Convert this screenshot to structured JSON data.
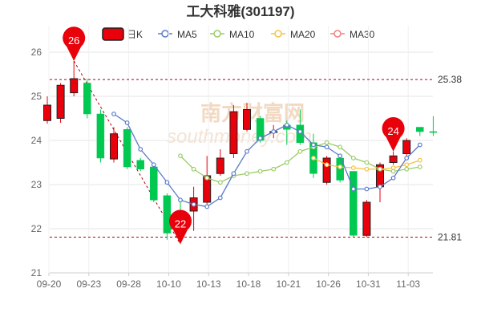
{
  "chart_data": {
    "type": "candlestick",
    "title": "工大科雅(301197)",
    "watermark": {
      "primary": "南方财富网",
      "secondary": "southmoney.com"
    },
    "legend": [
      {
        "name": "日K",
        "color": "#e8000b",
        "kind": "box"
      },
      {
        "name": "MA5",
        "color": "#5b7bc8",
        "kind": "line"
      },
      {
        "name": "MA10",
        "color": "#99cc66",
        "kind": "line"
      },
      {
        "name": "MA20",
        "color": "#f5c242",
        "kind": "line"
      },
      {
        "name": "MA30",
        "color": "#f08080",
        "kind": "line"
      }
    ],
    "y_ticks": [
      "26",
      "25",
      "24",
      "23",
      "22",
      "21"
    ],
    "y_range": [
      21,
      26.6
    ],
    "x_ticks": [
      {
        "label": "09-20",
        "index": 0
      },
      {
        "label": "09-23",
        "index": 3
      },
      {
        "label": "09-28",
        "index": 6
      },
      {
        "label": "10-10",
        "index": 9
      },
      {
        "label": "10-13",
        "index": 12
      },
      {
        "label": "10-18",
        "index": 15
      },
      {
        "label": "10-21",
        "index": 18
      },
      {
        "label": "10-26",
        "index": 21
      },
      {
        "label": "10-31",
        "index": 24
      },
      {
        "label": "11-03",
        "index": 27
      }
    ],
    "up_color": "#e8000b",
    "down_color": "#00c850",
    "candles": [
      {
        "o": 24.45,
        "c": 24.8,
        "h": 25.0,
        "l": 24.38
      },
      {
        "o": 24.5,
        "c": 25.25,
        "h": 25.3,
        "l": 24.4
      },
      {
        "o": 25.08,
        "c": 25.4,
        "h": 25.8,
        "l": 25.0
      },
      {
        "o": 25.3,
        "c": 24.6,
        "h": 25.4,
        "l": 24.5
      },
      {
        "o": 24.6,
        "c": 23.6,
        "h": 24.7,
        "l": 23.5
      },
      {
        "o": 23.58,
        "c": 24.15,
        "h": 24.3,
        "l": 23.5
      },
      {
        "o": 24.25,
        "c": 23.4,
        "h": 24.3,
        "l": 23.35
      },
      {
        "o": 23.55,
        "c": 23.35,
        "h": 23.6,
        "l": 23.3
      },
      {
        "o": 23.4,
        "c": 22.65,
        "h": 23.45,
        "l": 22.6
      },
      {
        "o": 22.75,
        "c": 21.9,
        "h": 22.8,
        "l": 21.75
      },
      {
        "o": 22.3,
        "c": 22.15,
        "h": 22.7,
        "l": 21.65
      },
      {
        "o": 22.4,
        "c": 22.7,
        "h": 22.95,
        "l": 21.95
      },
      {
        "o": 22.6,
        "c": 23.2,
        "h": 23.65,
        "l": 22.55
      },
      {
        "o": 23.25,
        "c": 23.6,
        "h": 23.8,
        "l": 23.2
      },
      {
        "o": 23.7,
        "c": 24.65,
        "h": 24.8,
        "l": 23.6
      },
      {
        "o": 24.25,
        "c": 24.7,
        "h": 24.85,
        "l": 24.2
      },
      {
        "o": 24.5,
        "c": 24.0,
        "h": 24.55,
        "l": 23.95
      },
      {
        "o": 24.2,
        "c": 24.2,
        "h": 24.35,
        "l": 24.05
      },
      {
        "o": 24.35,
        "c": 24.25,
        "h": 24.45,
        "l": 23.9
      },
      {
        "o": 24.35,
        "c": 23.95,
        "h": 24.7,
        "l": 23.9
      },
      {
        "o": 23.95,
        "c": 23.25,
        "h": 24.15,
        "l": 23.15
      },
      {
        "o": 23.05,
        "c": 23.6,
        "h": 23.65,
        "l": 23.0
      },
      {
        "o": 23.6,
        "c": 23.1,
        "h": 23.65,
        "l": 23.05
      },
      {
        "o": 23.3,
        "c": 21.85,
        "h": 23.3,
        "l": 21.81
      },
      {
        "o": 21.85,
        "c": 22.6,
        "h": 22.65,
        "l": 21.81
      },
      {
        "o": 22.95,
        "c": 23.45,
        "h": 23.5,
        "l": 22.6
      },
      {
        "o": 23.5,
        "c": 23.65,
        "h": 23.75,
        "l": 23.45
      },
      {
        "o": 23.7,
        "c": 24.0,
        "h": 24.05,
        "l": 23.65
      },
      {
        "o": 24.3,
        "c": 24.2,
        "h": 24.3,
        "l": 24.1
      },
      {
        "o": 24.2,
        "c": 24.18,
        "h": 24.55,
        "l": 24.1
      }
    ],
    "ma5": [
      null,
      null,
      null,
      null,
      24.6,
      24.4,
      23.8,
      23.45,
      23.05,
      22.65,
      22.55,
      22.5,
      22.7,
      23.25,
      23.75,
      24.05,
      24.2,
      24.35,
      24.2,
      23.9,
      23.85,
      23.65,
      22.9,
      22.9,
      22.95,
      23.15,
      23.6,
      23.9
    ],
    "ma10": [
      null,
      null,
      null,
      null,
      null,
      23.65,
      23.35,
      23.15,
      23.05,
      23.2,
      23.25,
      23.3,
      23.35,
      23.5,
      23.75,
      23.85,
      23.95,
      23.85,
      23.6,
      23.5,
      23.35,
      23.3,
      23.35,
      23.4
    ],
    "ma20": [
      null,
      null,
      null,
      null,
      null,
      null,
      null,
      null,
      null,
      null,
      null,
      null,
      null,
      23.6,
      23.45,
      23.4,
      23.38,
      23.35,
      23.35,
      23.38,
      23.45,
      23.55
    ],
    "ma30": [],
    "ma5_start": 5,
    "ma10_start": 10,
    "ma20_start": 20,
    "ref_lines": [
      {
        "label": "25.38",
        "value": 25.38
      },
      {
        "label": "21.81",
        "value": 21.81
      }
    ],
    "pins": [
      {
        "label": "26",
        "index": 2,
        "value": 25.8
      },
      {
        "label": "22",
        "index": 10,
        "value": 21.65
      },
      {
        "label": "24",
        "index": 26,
        "value": 23.75
      }
    ],
    "pin_color": "#e8000b"
  }
}
